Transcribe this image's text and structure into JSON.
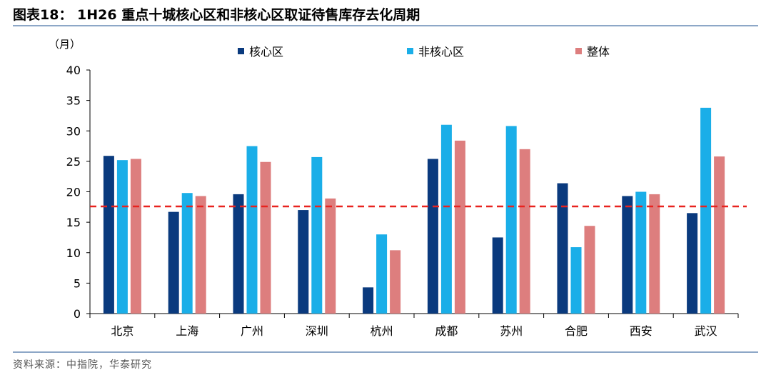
{
  "figure": {
    "title": "图表18： 1H26 重点十城核心区和非核心区取证待售库存去化周期",
    "source": "资料来源：中指院，华泰研究"
  },
  "colors": {
    "core": "#0a3a7e",
    "noncore": "#1aaee8",
    "overall": "#dd7e7e",
    "reference_line": "#e8231f",
    "rule": "#8da7c7"
  },
  "chart_data": {
    "type": "bar",
    "unit_label": "（月）",
    "categories": [
      "北京",
      "上海",
      "广州",
      "深圳",
      "杭州",
      "成都",
      "苏州",
      "合肥",
      "西安",
      "武汉"
    ],
    "series": [
      {
        "name": "核心区",
        "values": [
          25.9,
          16.7,
          19.6,
          17.0,
          4.3,
          25.4,
          12.5,
          21.4,
          19.3,
          16.5
        ]
      },
      {
        "name": "非核心区",
        "values": [
          25.2,
          19.8,
          27.5,
          25.7,
          13.0,
          31.0,
          30.8,
          10.9,
          20.0,
          33.8
        ]
      },
      {
        "name": "整体",
        "values": [
          25.4,
          19.3,
          24.9,
          18.9,
          10.4,
          28.4,
          27.0,
          14.4,
          19.6,
          25.8
        ]
      }
    ],
    "yticks": [
      0,
      5,
      10,
      15,
      20,
      25,
      30,
      35,
      40
    ],
    "ylim": [
      0,
      40
    ],
    "reference_line": 17.6,
    "legend_position": "top",
    "grid": false
  }
}
